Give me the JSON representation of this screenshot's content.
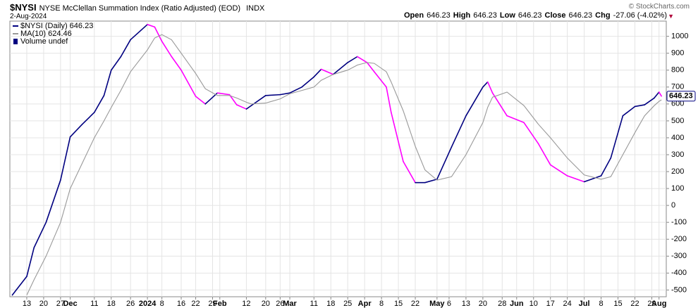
{
  "header": {
    "symbol": "$NYSI",
    "name": "NYSE McClellan Summation Index (Ratio Adjusted) (EOD)",
    "exchange": "INDX",
    "date": "2-Aug-2024",
    "copyright": "© StockCharts.com",
    "quote": [
      {
        "label": "Open",
        "value": "646.23"
      },
      {
        "label": "High",
        "value": "646.23"
      },
      {
        "label": "Low",
        "value": "646.23"
      },
      {
        "label": "Close",
        "value": "646.23"
      },
      {
        "label": "Chg",
        "value": "-27.06 (-4.02%)"
      }
    ]
  },
  "chart_data": {
    "type": "line",
    "legend": [
      "$NYSI (Daily) 646.23",
      "MA(10) 624.46",
      "Volume undef"
    ],
    "last_label": "646.23",
    "x": [
      "2023-11-07",
      "2023-11-13",
      "2023-11-16",
      "2023-11-21",
      "2023-11-27",
      "2023-12-01",
      "2023-12-06",
      "2023-12-11",
      "2023-12-15",
      "2023-12-18",
      "2023-12-22",
      "2023-12-26",
      "2024-01-02",
      "2024-01-05",
      "2024-01-08",
      "2024-01-12",
      "2024-01-16",
      "2024-01-22",
      "2024-01-26",
      "2024-01-31",
      "2024-02-05",
      "2024-02-08",
      "2024-02-12",
      "2024-02-14",
      "2024-02-20",
      "2024-02-26",
      "2024-03-01",
      "2024-03-06",
      "2024-03-11",
      "2024-03-14",
      "2024-03-19",
      "2024-03-25",
      "2024-03-29",
      "2024-04-02",
      "2024-04-05",
      "2024-04-10",
      "2024-04-12",
      "2024-04-17",
      "2024-04-22",
      "2024-04-26",
      "2024-05-01",
      "2024-05-07",
      "2024-05-13",
      "2024-05-20",
      "2024-05-22",
      "2024-05-24",
      "2024-05-30",
      "2024-06-06",
      "2024-06-12",
      "2024-06-17",
      "2024-06-24",
      "2024-07-01",
      "2024-07-08",
      "2024-07-12",
      "2024-07-17",
      "2024-07-22",
      "2024-07-26",
      "2024-07-30",
      "2024-08-01",
      "2024-08-02"
    ],
    "series": [
      {
        "name": "$NYSI",
        "color": "#000080",
        "down_color": "#ff00ff",
        "values": [
          -530,
          -420,
          -250,
          -100,
          150,
          405,
          480,
          550,
          650,
          800,
          880,
          980,
          1070,
          1055,
          970,
          880,
          800,
          645,
          600,
          665,
          655,
          595,
          570,
          590,
          650,
          655,
          665,
          700,
          760,
          805,
          775,
          845,
          880,
          845,
          790,
          700,
          550,
          260,
          135,
          135,
          155,
          345,
          530,
          700,
          730,
          665,
          530,
          490,
          365,
          240,
          175,
          140,
          175,
          280,
          530,
          585,
          595,
          635,
          670,
          646.23
        ]
      },
      {
        "name": "MA(10)",
        "color": "#999999",
        "values": [
          null,
          -530,
          -440,
          -300,
          -100,
          100,
          250,
          400,
          500,
          580,
          680,
          790,
          920,
          990,
          1010,
          980,
          900,
          780,
          690,
          650,
          650,
          635,
          610,
          600,
          605,
          630,
          660,
          680,
          700,
          740,
          775,
          800,
          830,
          845,
          840,
          790,
          730,
          560,
          350,
          210,
          150,
          170,
          300,
          490,
          580,
          640,
          670,
          590,
          480,
          400,
          280,
          180,
          155,
          170,
          300,
          430,
          530,
          590,
          615,
          624.46
        ]
      }
    ],
    "xlim": [
      "2023-11-06",
      "2024-08-04"
    ],
    "xticks": [
      {
        "value": "2023-11-13",
        "label": "13"
      },
      {
        "value": "2023-11-20",
        "label": "20"
      },
      {
        "value": "2023-11-27",
        "label": "27"
      },
      {
        "value": "2023-12-01",
        "label": "Dec"
      },
      {
        "value": "2023-12-11",
        "label": "11"
      },
      {
        "value": "2023-12-18",
        "label": "18"
      },
      {
        "value": "2023-12-26",
        "label": "26"
      },
      {
        "value": "2024-01-02",
        "label": "2024"
      },
      {
        "value": "2024-01-08",
        "label": "8"
      },
      {
        "value": "2024-01-16",
        "label": "16"
      },
      {
        "value": "2024-01-22",
        "label": "22"
      },
      {
        "value": "2024-01-29",
        "label": "29"
      },
      {
        "value": "2024-02-01",
        "label": "Feb"
      },
      {
        "value": "2024-02-12",
        "label": "12"
      },
      {
        "value": "2024-02-20",
        "label": "20"
      },
      {
        "value": "2024-02-26",
        "label": "26"
      },
      {
        "value": "2024-03-01",
        "label": "Mar"
      },
      {
        "value": "2024-03-11",
        "label": "11"
      },
      {
        "value": "2024-03-18",
        "label": "18"
      },
      {
        "value": "2024-03-25",
        "label": "25"
      },
      {
        "value": "2024-04-01",
        "label": "Apr"
      },
      {
        "value": "2024-04-08",
        "label": "8"
      },
      {
        "value": "2024-04-15",
        "label": "15"
      },
      {
        "value": "2024-04-22",
        "label": "22"
      },
      {
        "value": "2024-05-01",
        "label": "May"
      },
      {
        "value": "2024-05-06",
        "label": "6"
      },
      {
        "value": "2024-05-13",
        "label": "13"
      },
      {
        "value": "2024-05-20",
        "label": "20"
      },
      {
        "value": "2024-05-28",
        "label": "28"
      },
      {
        "value": "2024-06-03",
        "label": "Jun"
      },
      {
        "value": "2024-06-10",
        "label": "10"
      },
      {
        "value": "2024-06-17",
        "label": "17"
      },
      {
        "value": "2024-06-24",
        "label": "24"
      },
      {
        "value": "2024-07-01",
        "label": "Jul"
      },
      {
        "value": "2024-07-08",
        "label": "8"
      },
      {
        "value": "2024-07-15",
        "label": "15"
      },
      {
        "value": "2024-07-22",
        "label": "22"
      },
      {
        "value": "2024-07-29",
        "label": "29"
      },
      {
        "value": "2024-08-01",
        "label": "Aug"
      }
    ],
    "ylim": [
      -540,
      1090
    ],
    "yticks": [
      -500,
      -400,
      -300,
      -200,
      -100,
      0,
      100,
      200,
      300,
      400,
      500,
      600,
      700,
      800,
      900,
      1000
    ],
    "grid": true
  }
}
